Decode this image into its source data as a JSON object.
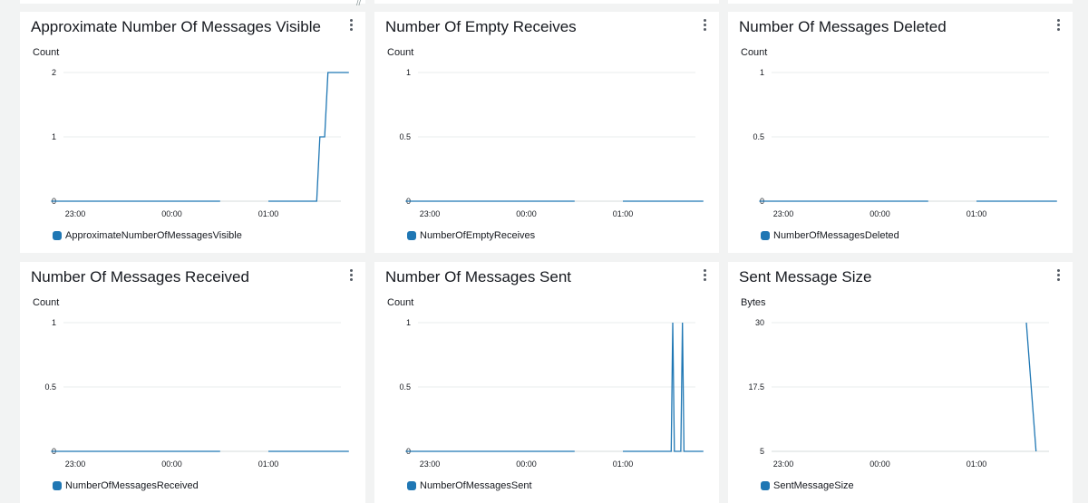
{
  "panels": [
    {
      "title": "Approximate Number Of Messages Visible",
      "unit": "Count",
      "legend": "ApproximateNumberOfMessagesVisible",
      "y_ticks": [
        "2",
        "1",
        "0"
      ],
      "x_ticks": [
        "23:00",
        "00:00",
        "01:00"
      ]
    },
    {
      "title": "Number Of Empty Receives",
      "unit": "Count",
      "legend": "NumberOfEmptyReceives",
      "y_ticks": [
        "1",
        "0.5",
        "0"
      ],
      "x_ticks": [
        "23:00",
        "00:00",
        "01:00"
      ]
    },
    {
      "title": "Number Of Messages Deleted",
      "unit": "Count",
      "legend": "NumberOfMessagesDeleted",
      "y_ticks": [
        "1",
        "0.5",
        "0"
      ],
      "x_ticks": [
        "23:00",
        "00:00",
        "01:00"
      ]
    },
    {
      "title": "Number Of Messages Received",
      "unit": "Count",
      "legend": "NumberOfMessagesReceived",
      "y_ticks": [
        "1",
        "0.5",
        "0"
      ],
      "x_ticks": [
        "23:00",
        "00:00",
        "01:00"
      ]
    },
    {
      "title": "Number Of Messages Sent",
      "unit": "Count",
      "legend": "NumberOfMessagesSent",
      "y_ticks": [
        "1",
        "0.5",
        "0"
      ],
      "x_ticks": [
        "23:00",
        "00:00",
        "01:00"
      ]
    },
    {
      "title": "Sent Message Size",
      "unit": "Bytes",
      "legend": "SentMessageSize",
      "y_ticks": [
        "30",
        "17.5",
        "5"
      ],
      "x_ticks": [
        "23:00",
        "00:00",
        "01:00"
      ]
    }
  ],
  "colors": {
    "series": "#1f77b4",
    "gap": "#d5dbdb",
    "grid": "#eaeded",
    "background": "#f2f3f3",
    "panel": "#ffffff"
  },
  "chart_data": [
    {
      "type": "line",
      "title": "Approximate Number Of Messages Visible",
      "ylabel": "Count",
      "ylim": [
        0,
        2
      ],
      "y_ticks": [
        0,
        1,
        2
      ],
      "x_ticks": [
        "23:00",
        "00:00",
        "01:00"
      ],
      "grid": true,
      "legend": "bottom",
      "series": [
        {
          "name": "ApproximateNumberOfMessagesVisible",
          "segments": [
            [
              [
                "22:45",
                0
              ],
              [
                "00:30",
                0
              ]
            ],
            [
              [
                "01:00",
                0
              ],
              [
                "01:30",
                0
              ],
              [
                "01:32",
                1
              ],
              [
                "01:35",
                1
              ],
              [
                "01:37",
                2
              ],
              [
                "01:50",
                2
              ]
            ]
          ]
        }
      ]
    },
    {
      "type": "line",
      "title": "Number Of Empty Receives",
      "ylabel": "Count",
      "ylim": [
        0,
        1
      ],
      "y_ticks": [
        0,
        0.5,
        1
      ],
      "x_ticks": [
        "23:00",
        "00:00",
        "01:00"
      ],
      "grid": true,
      "legend": "bottom",
      "series": [
        {
          "name": "NumberOfEmptyReceives",
          "segments": [
            [
              [
                "22:45",
                0
              ],
              [
                "00:30",
                0
              ]
            ],
            [
              [
                "01:00",
                0
              ],
              [
                "01:50",
                0
              ]
            ]
          ]
        }
      ]
    },
    {
      "type": "line",
      "title": "Number Of Messages Deleted",
      "ylabel": "Count",
      "ylim": [
        0,
        1
      ],
      "y_ticks": [
        0,
        0.5,
        1
      ],
      "x_ticks": [
        "23:00",
        "00:00",
        "01:00"
      ],
      "grid": true,
      "legend": "bottom",
      "series": [
        {
          "name": "NumberOfMessagesDeleted",
          "segments": [
            [
              [
                "22:45",
                0
              ],
              [
                "00:30",
                0
              ]
            ],
            [
              [
                "01:00",
                0
              ],
              [
                "01:50",
                0
              ]
            ]
          ]
        }
      ]
    },
    {
      "type": "line",
      "title": "Number Of Messages Received",
      "ylabel": "Count",
      "ylim": [
        0,
        1
      ],
      "y_ticks": [
        0,
        0.5,
        1
      ],
      "x_ticks": [
        "23:00",
        "00:00",
        "01:00"
      ],
      "grid": true,
      "legend": "bottom",
      "series": [
        {
          "name": "NumberOfMessagesReceived",
          "segments": [
            [
              [
                "22:45",
                0
              ],
              [
                "00:30",
                0
              ]
            ],
            [
              [
                "01:00",
                0
              ],
              [
                "01:50",
                0
              ]
            ]
          ]
        }
      ]
    },
    {
      "type": "line",
      "title": "Number Of Messages Sent",
      "ylabel": "Count",
      "ylim": [
        0,
        1
      ],
      "y_ticks": [
        0,
        0.5,
        1
      ],
      "x_ticks": [
        "23:00",
        "00:00",
        "01:00"
      ],
      "grid": true,
      "legend": "bottom",
      "series": [
        {
          "name": "NumberOfMessagesSent",
          "segments": [
            [
              [
                "22:45",
                0
              ],
              [
                "00:30",
                0
              ]
            ],
            [
              [
                "01:00",
                0
              ],
              [
                "01:30",
                0
              ],
              [
                "01:31",
                1
              ],
              [
                "01:32",
                0
              ],
              [
                "01:36",
                0
              ],
              [
                "01:37",
                1
              ],
              [
                "01:38",
                0
              ],
              [
                "01:50",
                0
              ]
            ]
          ]
        }
      ]
    },
    {
      "type": "line",
      "title": "Sent Message Size",
      "ylabel": "Bytes",
      "ylim": [
        5,
        30
      ],
      "y_ticks": [
        5,
        17.5,
        30
      ],
      "x_ticks": [
        "23:00",
        "00:00",
        "01:00"
      ],
      "grid": true,
      "legend": "bottom",
      "series": [
        {
          "name": "SentMessageSize",
          "segments": [
            [
              [
                "01:31",
                30
              ],
              [
                "01:37",
                5
              ]
            ]
          ]
        }
      ]
    }
  ]
}
